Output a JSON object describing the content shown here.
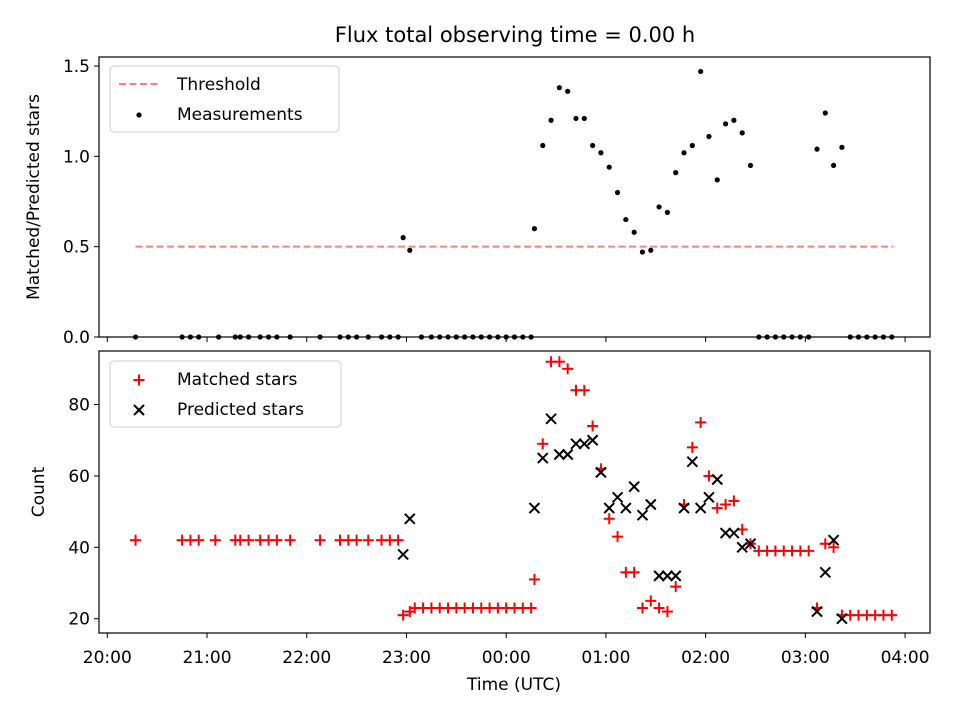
{
  "title": "Flux total observing time = 0.00 h",
  "colors": {
    "threshold": "#ff7f7f",
    "measurements": "#000000",
    "matched": "#ff0000",
    "predicted": "#000000"
  },
  "chart_data": [
    {
      "type": "scatter",
      "title": "Flux total observing time = 0.00 h",
      "xlabel": "",
      "ylabel": "Matched/Predicted stars",
      "xlim": [
        "19:55",
        "04:15"
      ],
      "ylim": [
        0,
        1.55
      ],
      "yticks": [
        "0.0",
        "0.5",
        "1.0",
        "1.5"
      ],
      "grid": false,
      "legend": {
        "position": "upper left",
        "entries": [
          "Threshold",
          "Measurements"
        ]
      },
      "threshold": {
        "name": "Threshold",
        "y": 0.5,
        "x_start": "20:17",
        "x_end": "03:53",
        "style": "dashed"
      },
      "series": [
        {
          "name": "Measurements",
          "marker": "dot",
          "points": [
            [
              "20:17",
              0.0
            ],
            [
              "20:45",
              0.0
            ],
            [
              "20:50",
              0.0
            ],
            [
              "20:55",
              0.0
            ],
            [
              "21:07",
              0.0
            ],
            [
              "21:17",
              0.0
            ],
            [
              "21:20",
              0.0
            ],
            [
              "21:25",
              0.0
            ],
            [
              "21:32",
              0.0
            ],
            [
              "21:37",
              0.0
            ],
            [
              "21:42",
              0.0
            ],
            [
              "21:50",
              0.0
            ],
            [
              "22:08",
              0.0
            ],
            [
              "22:20",
              0.0
            ],
            [
              "22:25",
              0.0
            ],
            [
              "22:30",
              0.0
            ],
            [
              "22:37",
              0.0
            ],
            [
              "22:45",
              0.0
            ],
            [
              "22:50",
              0.0
            ],
            [
              "22:55",
              0.0
            ],
            [
              "22:58",
              0.55
            ],
            [
              "23:02",
              0.48
            ],
            [
              "23:09",
              0.0
            ],
            [
              "23:15",
              0.0
            ],
            [
              "23:20",
              0.0
            ],
            [
              "23:25",
              0.0
            ],
            [
              "23:30",
              0.0
            ],
            [
              "23:35",
              0.0
            ],
            [
              "23:40",
              0.0
            ],
            [
              "23:45",
              0.0
            ],
            [
              "23:50",
              0.0
            ],
            [
              "23:55",
              0.0
            ],
            [
              "00:00",
              0.0
            ],
            [
              "00:05",
              0.0
            ],
            [
              "00:10",
              0.0
            ],
            [
              "00:15",
              0.0
            ],
            [
              "00:17",
              0.6
            ],
            [
              "00:22",
              1.06
            ],
            [
              "00:27",
              1.2
            ],
            [
              "00:32",
              1.38
            ],
            [
              "00:37",
              1.36
            ],
            [
              "00:42",
              1.21
            ],
            [
              "00:47",
              1.21
            ],
            [
              "00:52",
              1.06
            ],
            [
              "00:57",
              1.02
            ],
            [
              "01:02",
              0.94
            ],
            [
              "01:07",
              0.8
            ],
            [
              "01:12",
              0.65
            ],
            [
              "01:17",
              0.58
            ],
            [
              "01:22",
              0.47
            ],
            [
              "01:27",
              0.48
            ],
            [
              "01:32",
              0.72
            ],
            [
              "01:37",
              0.69
            ],
            [
              "01:42",
              0.91
            ],
            [
              "01:47",
              1.02
            ],
            [
              "01:52",
              1.06
            ],
            [
              "01:57",
              1.47
            ],
            [
              "02:02",
              1.11
            ],
            [
              "02:07",
              0.87
            ],
            [
              "02:12",
              1.18
            ],
            [
              "02:17",
              1.2
            ],
            [
              "02:22",
              1.13
            ],
            [
              "02:27",
              0.95
            ],
            [
              "02:32",
              0.0
            ],
            [
              "02:37",
              0.0
            ],
            [
              "02:42",
              0.0
            ],
            [
              "02:47",
              0.0
            ],
            [
              "02:52",
              0.0
            ],
            [
              "02:57",
              0.0
            ],
            [
              "03:02",
              0.0
            ],
            [
              "03:07",
              1.04
            ],
            [
              "03:12",
              1.24
            ],
            [
              "03:17",
              0.95
            ],
            [
              "03:22",
              1.05
            ],
            [
              "03:27",
              0.0
            ],
            [
              "03:32",
              0.0
            ],
            [
              "03:37",
              0.0
            ],
            [
              "03:42",
              0.0
            ],
            [
              "03:47",
              0.0
            ],
            [
              "03:52",
              0.0
            ]
          ]
        }
      ]
    },
    {
      "type": "scatter",
      "title": "",
      "xlabel": "Time (UTC)",
      "ylabel": "Count",
      "xlim": [
        "19:55",
        "04:15"
      ],
      "ylim": [
        16,
        95
      ],
      "yticks": [
        "20",
        "40",
        "60",
        "80"
      ],
      "xticks": [
        "20:00",
        "21:00",
        "22:00",
        "23:00",
        "00:00",
        "01:00",
        "02:00",
        "03:00",
        "04:00"
      ],
      "grid": false,
      "legend": {
        "position": "upper left",
        "entries": [
          "Matched stars",
          "Predicted stars"
        ]
      },
      "series": [
        {
          "name": "Matched stars",
          "marker": "plus",
          "points": [
            [
              "20:17",
              42
            ],
            [
              "20:45",
              42
            ],
            [
              "20:50",
              42
            ],
            [
              "20:55",
              42
            ],
            [
              "21:05",
              42
            ],
            [
              "21:17",
              42
            ],
            [
              "21:20",
              42
            ],
            [
              "21:25",
              42
            ],
            [
              "21:32",
              42
            ],
            [
              "21:37",
              42
            ],
            [
              "21:42",
              42
            ],
            [
              "21:50",
              42
            ],
            [
              "22:08",
              42
            ],
            [
              "22:20",
              42
            ],
            [
              "22:25",
              42
            ],
            [
              "22:30",
              42
            ],
            [
              "22:37",
              42
            ],
            [
              "22:45",
              42
            ],
            [
              "22:50",
              42
            ],
            [
              "22:55",
              42
            ],
            [
              "22:58",
              21
            ],
            [
              "23:02",
              22
            ],
            [
              "23:05",
              23
            ],
            [
              "23:10",
              23
            ],
            [
              "23:15",
              23
            ],
            [
              "23:20",
              23
            ],
            [
              "23:25",
              23
            ],
            [
              "23:30",
              23
            ],
            [
              "23:35",
              23
            ],
            [
              "23:40",
              23
            ],
            [
              "23:45",
              23
            ],
            [
              "23:50",
              23
            ],
            [
              "23:55",
              23
            ],
            [
              "00:00",
              23
            ],
            [
              "00:05",
              23
            ],
            [
              "00:10",
              23
            ],
            [
              "00:15",
              23
            ],
            [
              "00:17",
              31
            ],
            [
              "00:22",
              69
            ],
            [
              "00:27",
              92
            ],
            [
              "00:32",
              92
            ],
            [
              "00:37",
              90
            ],
            [
              "00:42",
              84
            ],
            [
              "00:47",
              84
            ],
            [
              "00:52",
              74
            ],
            [
              "00:57",
              62
            ],
            [
              "01:02",
              48
            ],
            [
              "01:07",
              43
            ],
            [
              "01:12",
              33
            ],
            [
              "01:17",
              33
            ],
            [
              "01:22",
              23
            ],
            [
              "01:27",
              25
            ],
            [
              "01:32",
              23
            ],
            [
              "01:37",
              22
            ],
            [
              "01:42",
              29
            ],
            [
              "01:47",
              52
            ],
            [
              "01:52",
              68
            ],
            [
              "01:57",
              75
            ],
            [
              "02:02",
              60
            ],
            [
              "02:07",
              51
            ],
            [
              "02:12",
              52
            ],
            [
              "02:17",
              53
            ],
            [
              "02:22",
              45
            ],
            [
              "02:27",
              41
            ],
            [
              "02:32",
              39
            ],
            [
              "02:37",
              39
            ],
            [
              "02:42",
              39
            ],
            [
              "02:47",
              39
            ],
            [
              "02:52",
              39
            ],
            [
              "02:57",
              39
            ],
            [
              "03:02",
              39
            ],
            [
              "03:07",
              23
            ],
            [
              "03:12",
              41
            ],
            [
              "03:17",
              40
            ],
            [
              "03:22",
              21
            ],
            [
              "03:27",
              21
            ],
            [
              "03:32",
              21
            ],
            [
              "03:37",
              21
            ],
            [
              "03:42",
              21
            ],
            [
              "03:47",
              21
            ],
            [
              "03:52",
              21
            ]
          ]
        },
        {
          "name": "Predicted stars",
          "marker": "x",
          "points": [
            [
              "22:58",
              38
            ],
            [
              "23:02",
              48
            ],
            [
              "00:17",
              51
            ],
            [
              "00:22",
              65
            ],
            [
              "00:27",
              76
            ],
            [
              "00:32",
              66
            ],
            [
              "00:37",
              66
            ],
            [
              "00:42",
              69
            ],
            [
              "00:47",
              69
            ],
            [
              "00:52",
              70
            ],
            [
              "00:57",
              61
            ],
            [
              "01:02",
              51
            ],
            [
              "01:07",
              54
            ],
            [
              "01:12",
              51
            ],
            [
              "01:17",
              57
            ],
            [
              "01:22",
              49
            ],
            [
              "01:27",
              52
            ],
            [
              "01:32",
              32
            ],
            [
              "01:37",
              32
            ],
            [
              "01:42",
              32
            ],
            [
              "01:47",
              51
            ],
            [
              "01:52",
              64
            ],
            [
              "01:57",
              51
            ],
            [
              "02:02",
              54
            ],
            [
              "02:07",
              59
            ],
            [
              "02:12",
              44
            ],
            [
              "02:17",
              44
            ],
            [
              "02:22",
              40
            ],
            [
              "02:27",
              41
            ],
            [
              "03:07",
              22
            ],
            [
              "03:12",
              33
            ],
            [
              "03:17",
              42
            ],
            [
              "03:22",
              20
            ]
          ]
        }
      ]
    }
  ]
}
